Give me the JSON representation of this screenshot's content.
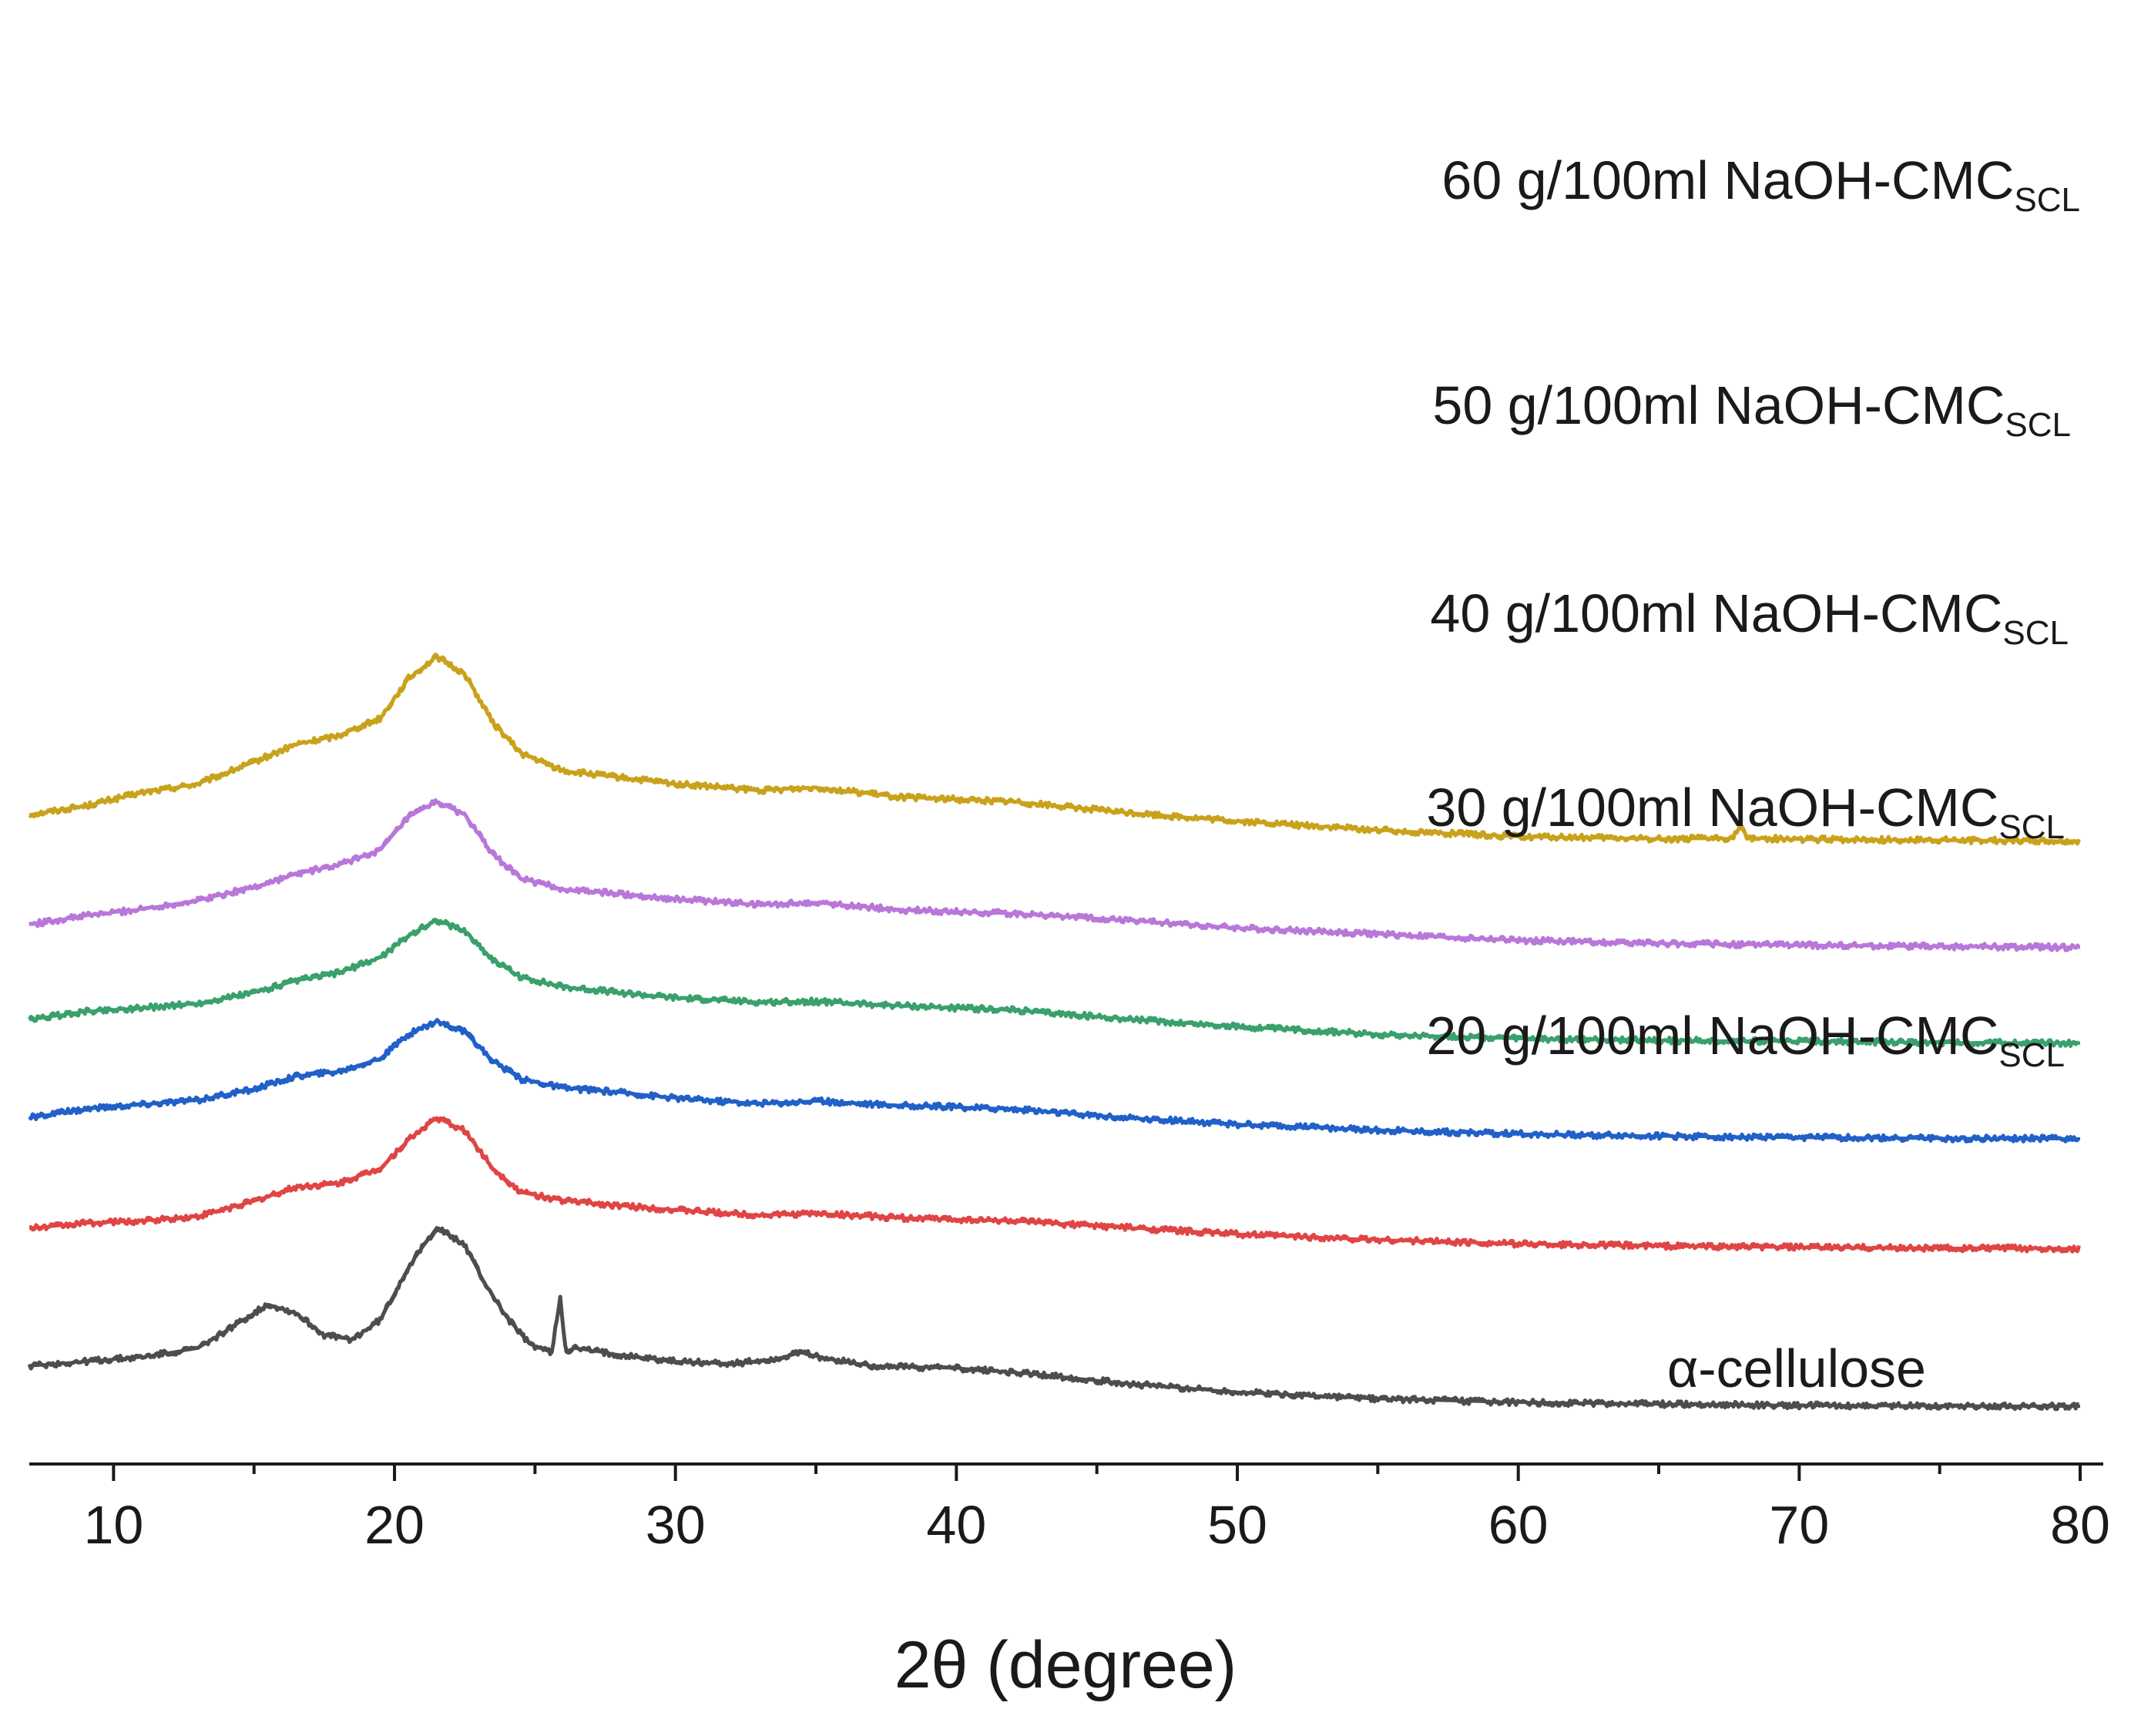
{
  "chart_data": {
    "type": "line",
    "title": "",
    "xlabel": "2θ (degree)",
    "ylabel": "",
    "xlim": [
      7,
      80
    ],
    "y_axis_shown": false,
    "grid": false,
    "x_ticks": [
      "10",
      "20",
      "30",
      "40",
      "50",
      "60",
      "70",
      "80"
    ],
    "x_tick_values": [
      10,
      20,
      30,
      40,
      50,
      60,
      70,
      80
    ],
    "x_minor_ticks": [
      15,
      25,
      35,
      45,
      55,
      65,
      75
    ],
    "series": [
      {
        "name": "60 g/100ml NaOH-CMC",
        "subscript": "SCL",
        "color": "#C9A21C",
        "x": [
          7,
          9,
          11,
          13,
          15,
          16.5,
          18,
          19.5,
          20.5,
          21.5,
          22.5,
          23.5,
          24.5,
          26,
          28,
          30,
          33,
          35,
          38,
          42,
          46,
          50,
          55,
          60,
          65,
          67.6,
          67.9,
          68.2,
          70,
          75,
          80
        ],
        "y": [
          1110,
          1130,
          1160,
          1180,
          1230,
          1270,
          1290,
          1330,
          1420,
          1470,
          1430,
          1320,
          1250,
          1210,
          1195,
          1180,
          1165,
          1172,
          1150,
          1140,
          1115,
          1095,
          1075,
          1060,
          1055,
          1056,
          1082,
          1057,
          1054,
          1052,
          1050
        ]
      },
      {
        "name": "50 g/100ml NaOH-CMC",
        "subscript": "SCL",
        "color": "#B877D9",
        "x": [
          7,
          9,
          11,
          13,
          15,
          16.5,
          18,
          19.5,
          20.5,
          21.5,
          22.5,
          23.5,
          24.5,
          26,
          28,
          30,
          33,
          35,
          38,
          42,
          46,
          50,
          55,
          60,
          65,
          70,
          75,
          80
        ],
        "y": [
          860,
          880,
          895,
          915,
          945,
          975,
          995,
          1030,
          1105,
          1140,
          1110,
          1020,
          965,
          940,
          930,
          918,
          905,
          910,
          893,
          885,
          870,
          852,
          838,
          824,
          817,
          813,
          810,
          808
        ]
      },
      {
        "name": "40 g/100ml NaOH-CMC",
        "subscript": "SCL",
        "color": "#3AA06C",
        "x": [
          7,
          9,
          11,
          13,
          15,
          16.5,
          18,
          19.5,
          20.5,
          21.5,
          22.5,
          23.5,
          24.5,
          26,
          28,
          30,
          33,
          35,
          38,
          42,
          46,
          50,
          55,
          60,
          65,
          70,
          75,
          80
        ],
        "y": [
          643,
          662,
          670,
          680,
          705,
          732,
          750,
          785,
          835,
          870,
          845,
          780,
          740,
          718,
          705,
          693,
          683,
          685,
          675,
          665,
          645,
          627,
          610,
          600,
          596,
          594,
          591,
          590
        ]
      },
      {
        "name": "30 g/100ml NaOH-CMC",
        "subscript": "SCL",
        "color": "#2160C8",
        "x": [
          7,
          9,
          11,
          13,
          15,
          16.5,
          18,
          19.5,
          20.5,
          21.5,
          22.5,
          23.5,
          24.5,
          26,
          28,
          30,
          33,
          35,
          38,
          42,
          46,
          50,
          55,
          60,
          65,
          70,
          75,
          80
        ],
        "y": [
          420,
          440,
          450,
          460,
          485,
          515,
          525,
          555,
          610,
          640,
          615,
          550,
          508,
          488,
          478,
          465,
          452,
          458,
          448,
          440,
          420,
          405,
          392,
          383,
          378,
          375,
          373,
          372
        ]
      },
      {
        "name": "20 g/100ml NaOH-CMC",
        "subscript": "SCL",
        "color": "#E04545",
        "x": [
          7,
          9,
          11,
          13,
          15,
          16.5,
          18,
          19.5,
          20.5,
          21.5,
          22.5,
          23.5,
          24.5,
          26,
          28,
          30,
          33,
          35,
          38,
          42,
          46,
          50,
          55,
          60,
          65,
          70,
          75,
          80
        ],
        "y": [
          168,
          180,
          185,
          195,
          230,
          262,
          270,
          305,
          370,
          420,
          390,
          305,
          250,
          232,
          220,
          210,
          198,
          202,
          192,
          185,
          170,
          155,
          142,
          133,
          128,
          125,
          123,
          122
        ]
      },
      {
        "name": "α-cellulose",
        "subscript": "",
        "color": "#4D4D4D",
        "x": [
          7,
          9,
          11,
          13,
          14.5,
          15.5,
          16.5,
          17.5,
          18.5,
          19.5,
          20.5,
          21.5,
          22.5,
          23.2,
          24,
          24.8,
          25.6,
          25.9,
          26.1,
          26.4,
          27,
          28,
          30,
          32,
          33.5,
          34.5,
          35.5,
          37,
          40,
          43,
          46,
          50,
          55,
          60,
          65,
          70,
          75,
          80
        ],
        "y": [
          -145,
          -135,
          -125,
          -105,
          -45,
          -5,
          -25,
          -75,
          -85,
          -40,
          80,
          170,
          130,
          45,
          -35,
          -95,
          -115,
          12,
          -112,
          -105,
          -110,
          -120,
          -135,
          -140,
          -130,
          -115,
          -130,
          -145,
          -150,
          -165,
          -185,
          -205,
          -220,
          -228,
          -232,
          -235,
          -236,
          -237
        ]
      }
    ],
    "baseline_offsets_note": "curves are vertically stacked (offset) with no y axis shown"
  }
}
